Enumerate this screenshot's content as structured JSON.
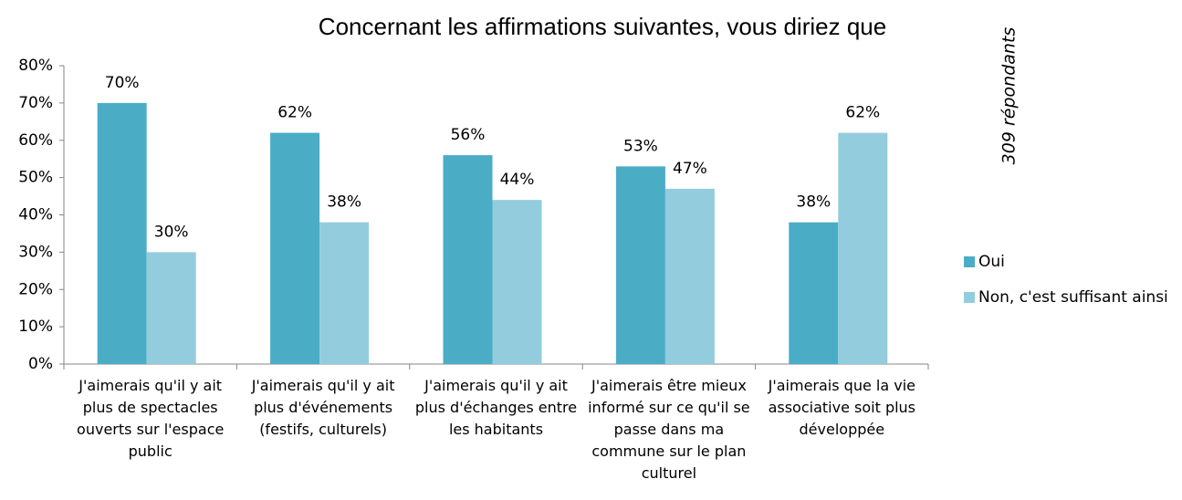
{
  "chart_data": {
    "type": "bar",
    "title": "Concernant les affirmations suivantes, vous diriez que",
    "annotation": "309 répondants",
    "categories": [
      "J'aimerais qu'il y ait plus de spectacles ouverts sur l'espace public",
      "J'aimerais qu'il y ait plus d'événements (festifs, culturels)",
      "J'aimerais qu'il y ait plus d'échanges entre les habitants",
      "J'aimerais être mieux informé sur ce qu'il se passe dans ma commune sur le plan culturel",
      "J'aimerais que la vie associative soit plus développée"
    ],
    "series": [
      {
        "name": "Oui",
        "color": "#4bacc6",
        "values": [
          70,
          62,
          56,
          53,
          38
        ],
        "value_labels": [
          "70%",
          "62%",
          "56%",
          "53%",
          "38%"
        ]
      },
      {
        "name": "Non, c'est suffisant ainsi",
        "color": "#93cddd",
        "values": [
          30,
          38,
          44,
          47,
          62
        ],
        "value_labels": [
          "30%",
          "38%",
          "44%",
          "47%",
          "62%"
        ]
      }
    ],
    "ylim": [
      0,
      80
    ],
    "yticks": [
      {
        "value": 0,
        "label": "0%"
      },
      {
        "value": 10,
        "label": "10%"
      },
      {
        "value": 20,
        "label": "20%"
      },
      {
        "value": 30,
        "label": "30%"
      },
      {
        "value": 40,
        "label": "40%"
      },
      {
        "value": 50,
        "label": "50%"
      },
      {
        "value": 60,
        "label": "60%"
      },
      {
        "value": 70,
        "label": "70%"
      },
      {
        "value": 80,
        "label": "80%"
      }
    ],
    "legend": "right"
  }
}
